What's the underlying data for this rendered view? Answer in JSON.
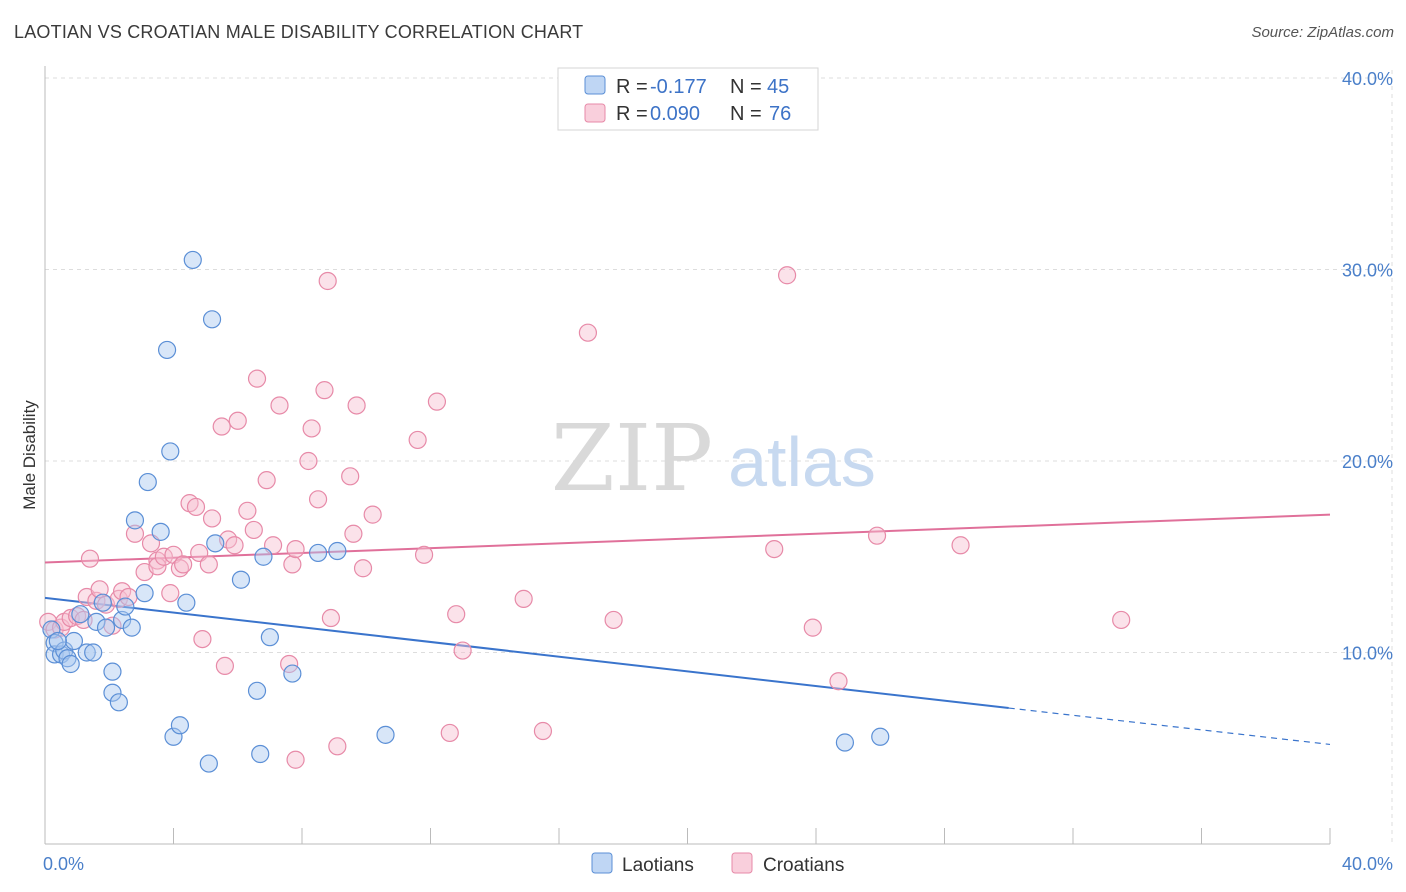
{
  "title": "LAOTIAN VS CROATIAN MALE DISABILITY CORRELATION CHART",
  "source": "Source: ZipAtlas.com",
  "watermark": {
    "part1": "ZIP",
    "part2": "atlas"
  },
  "colors": {
    "laotians_fill": "#a9c8f0",
    "laotians_stroke": "#5b8fd6",
    "laotians_line": "#3a74cc",
    "croatians_fill": "#f7bfd0",
    "croatians_stroke": "#e78aa8",
    "croatians_line": "#e0709a",
    "tick_text": "#4a7fc9",
    "grid": "#dddddd"
  },
  "legend": {
    "rows": [
      {
        "r_label": "R =",
        "r_value": "-0.177",
        "n_label": "N =",
        "n_value": "45"
      },
      {
        "r_label": "R =",
        "r_value": "0.090",
        "n_label": "N =",
        "n_value": "76"
      }
    ]
  },
  "chart_data": {
    "type": "scatter",
    "title": "LAOTIAN VS CROATIAN MALE DISABILITY CORRELATION CHART",
    "xlabel": "",
    "ylabel": "Male Disability",
    "xlim": [
      0,
      40
    ],
    "ylim": [
      0,
      40
    ],
    "x_tick_labels": [
      "0.0%",
      "40.0%"
    ],
    "y_tick_labels": [
      "10.0%",
      "20.0%",
      "30.0%",
      "40.0%"
    ],
    "y_ticks": [
      10,
      20,
      30,
      40
    ],
    "legend_position": "bottom",
    "series": [
      {
        "name": "Laotians",
        "r": -0.177,
        "n": 45,
        "trend": {
          "x0": 0,
          "y0": 12.85,
          "x1": 30,
          "y1": 7.1,
          "dashed_to_x": 40,
          "dashed_to_y": 5.2
        },
        "points": [
          [
            0.2,
            11.2
          ],
          [
            0.3,
            10.5
          ],
          [
            0.3,
            9.9
          ],
          [
            0.5,
            9.9
          ],
          [
            0.6,
            10.1
          ],
          [
            0.7,
            9.7
          ],
          [
            0.8,
            9.4
          ],
          [
            0.9,
            10.6
          ],
          [
            1.1,
            12.0
          ],
          [
            1.3,
            10.0
          ],
          [
            1.5,
            10.0
          ],
          [
            1.6,
            11.6
          ],
          [
            1.8,
            12.6
          ],
          [
            1.9,
            11.3
          ],
          [
            2.1,
            9.0
          ],
          [
            2.1,
            7.9
          ],
          [
            2.3,
            7.4
          ],
          [
            2.4,
            11.7
          ],
          [
            2.5,
            12.4
          ],
          [
            2.7,
            11.3
          ],
          [
            2.8,
            16.9
          ],
          [
            3.1,
            13.1
          ],
          [
            3.2,
            18.9
          ],
          [
            3.6,
            16.3
          ],
          [
            3.8,
            25.8
          ],
          [
            3.9,
            20.5
          ],
          [
            4.0,
            5.6
          ],
          [
            4.2,
            6.2
          ],
          [
            4.4,
            12.6
          ],
          [
            4.6,
            30.5
          ],
          [
            5.1,
            4.2
          ],
          [
            5.2,
            27.4
          ],
          [
            5.3,
            15.7
          ],
          [
            6.1,
            13.8
          ],
          [
            6.6,
            8.0
          ],
          [
            6.7,
            4.7
          ],
          [
            6.8,
            15.0
          ],
          [
            7.0,
            10.8
          ],
          [
            7.7,
            8.9
          ],
          [
            8.5,
            15.2
          ],
          [
            9.1,
            15.3
          ],
          [
            10.6,
            5.7
          ],
          [
            24.9,
            5.3
          ],
          [
            26.0,
            5.6
          ],
          [
            0.4,
            10.6
          ]
        ]
      },
      {
        "name": "Croatians",
        "r": 0.09,
        "n": 76,
        "trend": {
          "x0": 0,
          "y0": 14.7,
          "x1": 40,
          "y1": 17.2
        },
        "points": [
          [
            0.1,
            11.6
          ],
          [
            0.3,
            11.2
          ],
          [
            0.5,
            11.3
          ],
          [
            0.6,
            11.6
          ],
          [
            0.8,
            11.8
          ],
          [
            1.0,
            11.9
          ],
          [
            1.2,
            11.7
          ],
          [
            1.3,
            12.9
          ],
          [
            1.4,
            14.9
          ],
          [
            1.6,
            12.7
          ],
          [
            1.7,
            13.3
          ],
          [
            1.9,
            12.5
          ],
          [
            2.1,
            11.4
          ],
          [
            2.3,
            12.8
          ],
          [
            2.4,
            13.2
          ],
          [
            2.6,
            12.9
          ],
          [
            2.8,
            16.2
          ],
          [
            3.1,
            14.2
          ],
          [
            3.3,
            15.7
          ],
          [
            3.5,
            14.8
          ],
          [
            3.5,
            14.5
          ],
          [
            3.7,
            15.0
          ],
          [
            3.9,
            13.1
          ],
          [
            4.0,
            15.1
          ],
          [
            4.2,
            14.4
          ],
          [
            4.3,
            14.6
          ],
          [
            4.5,
            17.8
          ],
          [
            4.7,
            17.6
          ],
          [
            4.8,
            15.2
          ],
          [
            4.9,
            10.7
          ],
          [
            5.1,
            14.6
          ],
          [
            5.2,
            17.0
          ],
          [
            5.5,
            21.8
          ],
          [
            5.6,
            9.3
          ],
          [
            5.7,
            15.9
          ],
          [
            5.9,
            15.6
          ],
          [
            6.0,
            22.1
          ],
          [
            6.3,
            17.4
          ],
          [
            6.5,
            16.4
          ],
          [
            6.6,
            24.3
          ],
          [
            6.9,
            19.0
          ],
          [
            7.1,
            15.6
          ],
          [
            7.3,
            22.9
          ],
          [
            7.6,
            9.4
          ],
          [
            7.7,
            14.6
          ],
          [
            7.8,
            15.4
          ],
          [
            7.8,
            4.4
          ],
          [
            8.2,
            20.0
          ],
          [
            8.3,
            21.7
          ],
          [
            8.5,
            18.0
          ],
          [
            8.7,
            23.7
          ],
          [
            8.8,
            29.4
          ],
          [
            8.9,
            11.8
          ],
          [
            9.1,
            5.1
          ],
          [
            9.5,
            19.2
          ],
          [
            9.6,
            16.2
          ],
          [
            9.7,
            22.9
          ],
          [
            9.9,
            14.4
          ],
          [
            10.2,
            17.2
          ],
          [
            11.6,
            21.1
          ],
          [
            11.8,
            15.1
          ],
          [
            12.2,
            23.1
          ],
          [
            12.6,
            5.8
          ],
          [
            12.8,
            12.0
          ],
          [
            13.0,
            10.1
          ],
          [
            14.9,
            12.8
          ],
          [
            15.5,
            5.9
          ],
          [
            16.9,
            26.7
          ],
          [
            17.7,
            11.7
          ],
          [
            22.7,
            15.4
          ],
          [
            23.1,
            29.7
          ],
          [
            23.9,
            11.3
          ],
          [
            24.7,
            8.5
          ],
          [
            25.9,
            16.1
          ],
          [
            28.5,
            15.6
          ],
          [
            33.5,
            11.7
          ]
        ]
      }
    ]
  },
  "bottom_legend": {
    "items": [
      "Laotians",
      "Croatians"
    ]
  }
}
